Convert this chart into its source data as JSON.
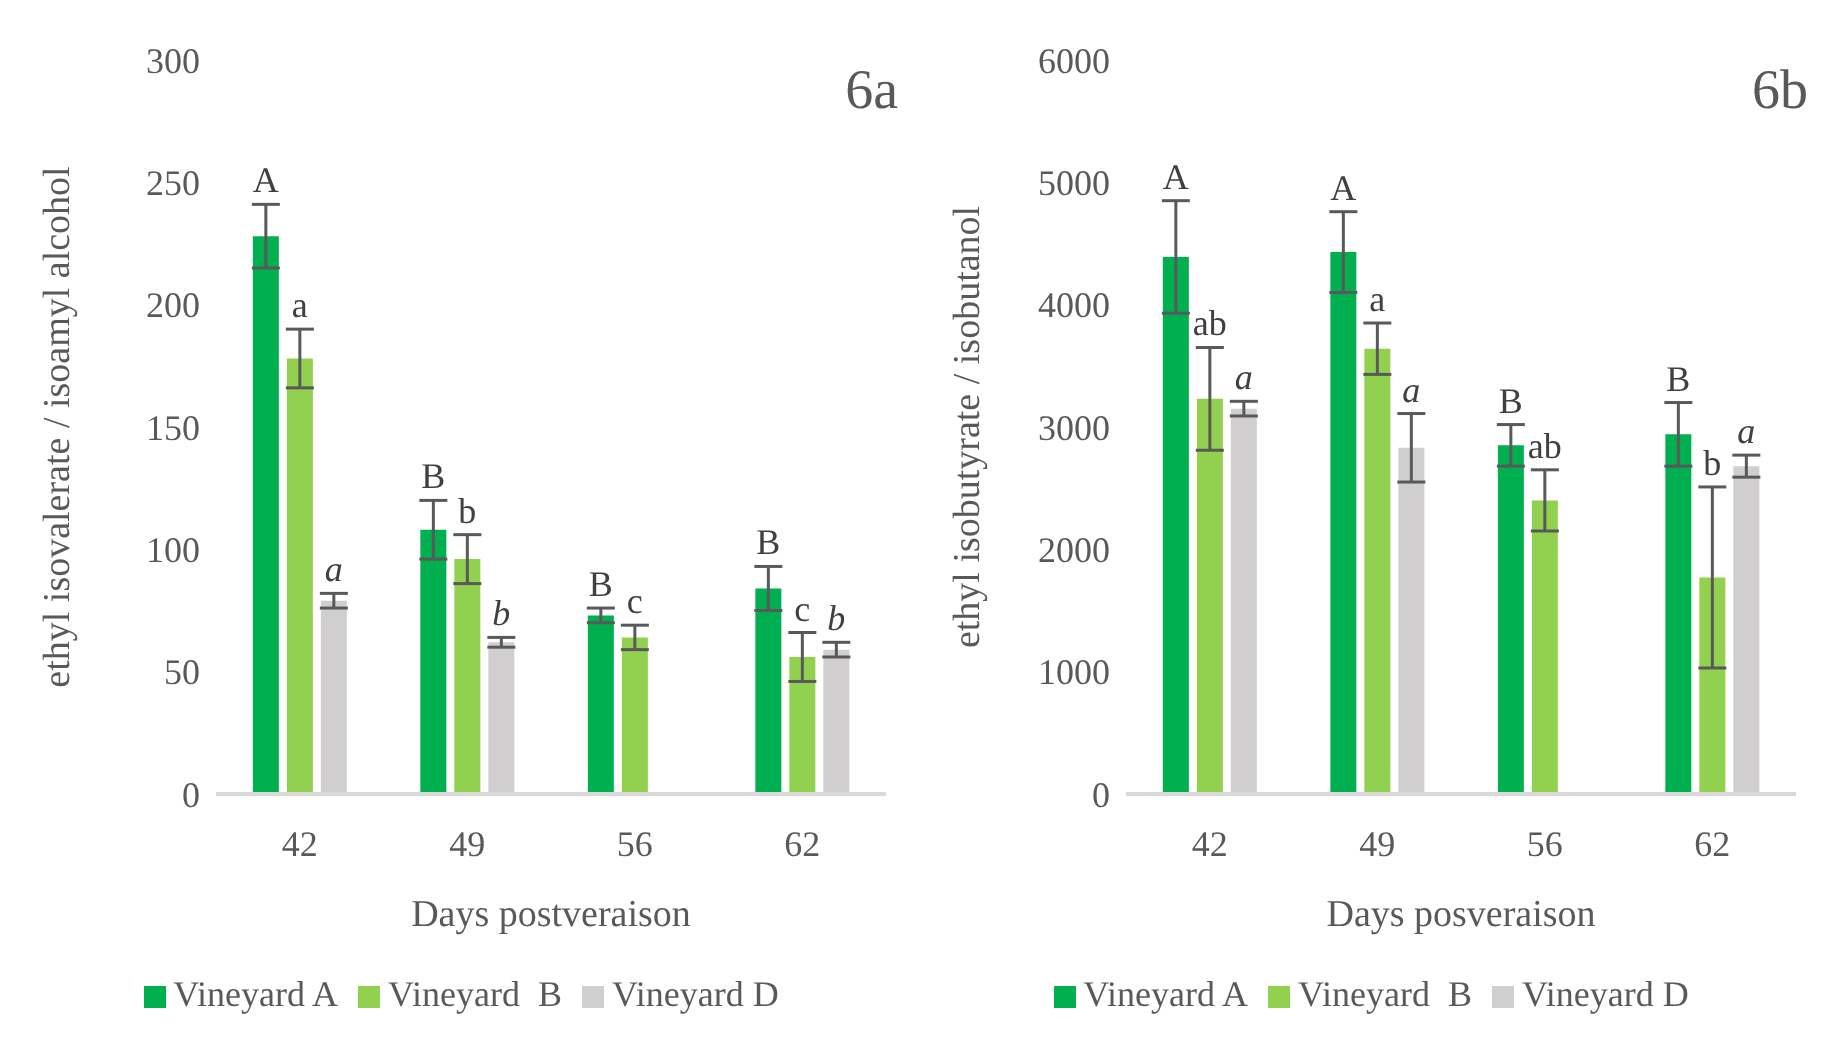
{
  "chart_data": [
    {
      "type": "bar",
      "title": "6a",
      "xlabel": "Days postveraison",
      "ylabel": "ethyl isovalerate / isoamyl alcohol",
      "categories": [
        "42",
        "49",
        "56",
        "62"
      ],
      "ylim": [
        0,
        300
      ],
      "yticks": [
        0,
        50,
        100,
        150,
        200,
        250,
        300
      ],
      "grid": false,
      "legend": "bottom",
      "series": [
        {
          "name": "Vineyard A",
          "color": "#00b050",
          "values": [
            228,
            108,
            73,
            84
          ],
          "errors": [
            13,
            12,
            3,
            9
          ],
          "value_labels": [
            "A",
            "B",
            "B",
            "B"
          ]
        },
        {
          "name": "Vineyard  B",
          "color": "#92d050",
          "values": [
            178,
            96,
            64,
            56
          ],
          "errors": [
            12,
            10,
            5,
            10
          ],
          "value_labels": [
            "a",
            "b",
            "c",
            "c"
          ]
        },
        {
          "name": "Vineyard D",
          "color": "#d0cece",
          "values": [
            79,
            62,
            null,
            59
          ],
          "errors": [
            3,
            2,
            null,
            3
          ],
          "value_labels": [
            "a",
            "b",
            null,
            "b"
          ]
        }
      ]
    },
    {
      "type": "bar",
      "title": "6b",
      "xlabel": "Days posveraison",
      "ylabel": "ethyl isobutyrate / isobutanol",
      "categories": [
        "42",
        "49",
        "56",
        "62"
      ],
      "ylim": [
        0,
        6000
      ],
      "yticks": [
        0,
        1000,
        2000,
        3000,
        4000,
        5000,
        6000
      ],
      "grid": false,
      "legend": "bottom",
      "series": [
        {
          "name": "Vineyard A",
          "color": "#00b050",
          "values": [
            4390,
            4430,
            2850,
            2940
          ],
          "errors": [
            460,
            330,
            170,
            260
          ],
          "value_labels": [
            "A",
            "A",
            "B",
            "B"
          ]
        },
        {
          "name": "Vineyard  B",
          "color": "#92d050",
          "values": [
            3230,
            3640,
            2400,
            1770
          ],
          "errors": [
            420,
            210,
            250,
            740
          ],
          "value_labels": [
            "ab",
            "a",
            "ab",
            "b"
          ]
        },
        {
          "name": "Vineyard D",
          "color": "#d0cece",
          "values": [
            3150,
            2830,
            null,
            2680
          ],
          "errors": [
            60,
            280,
            null,
            90
          ],
          "value_labels": [
            "a",
            "a",
            null,
            "a"
          ]
        }
      ]
    }
  ]
}
